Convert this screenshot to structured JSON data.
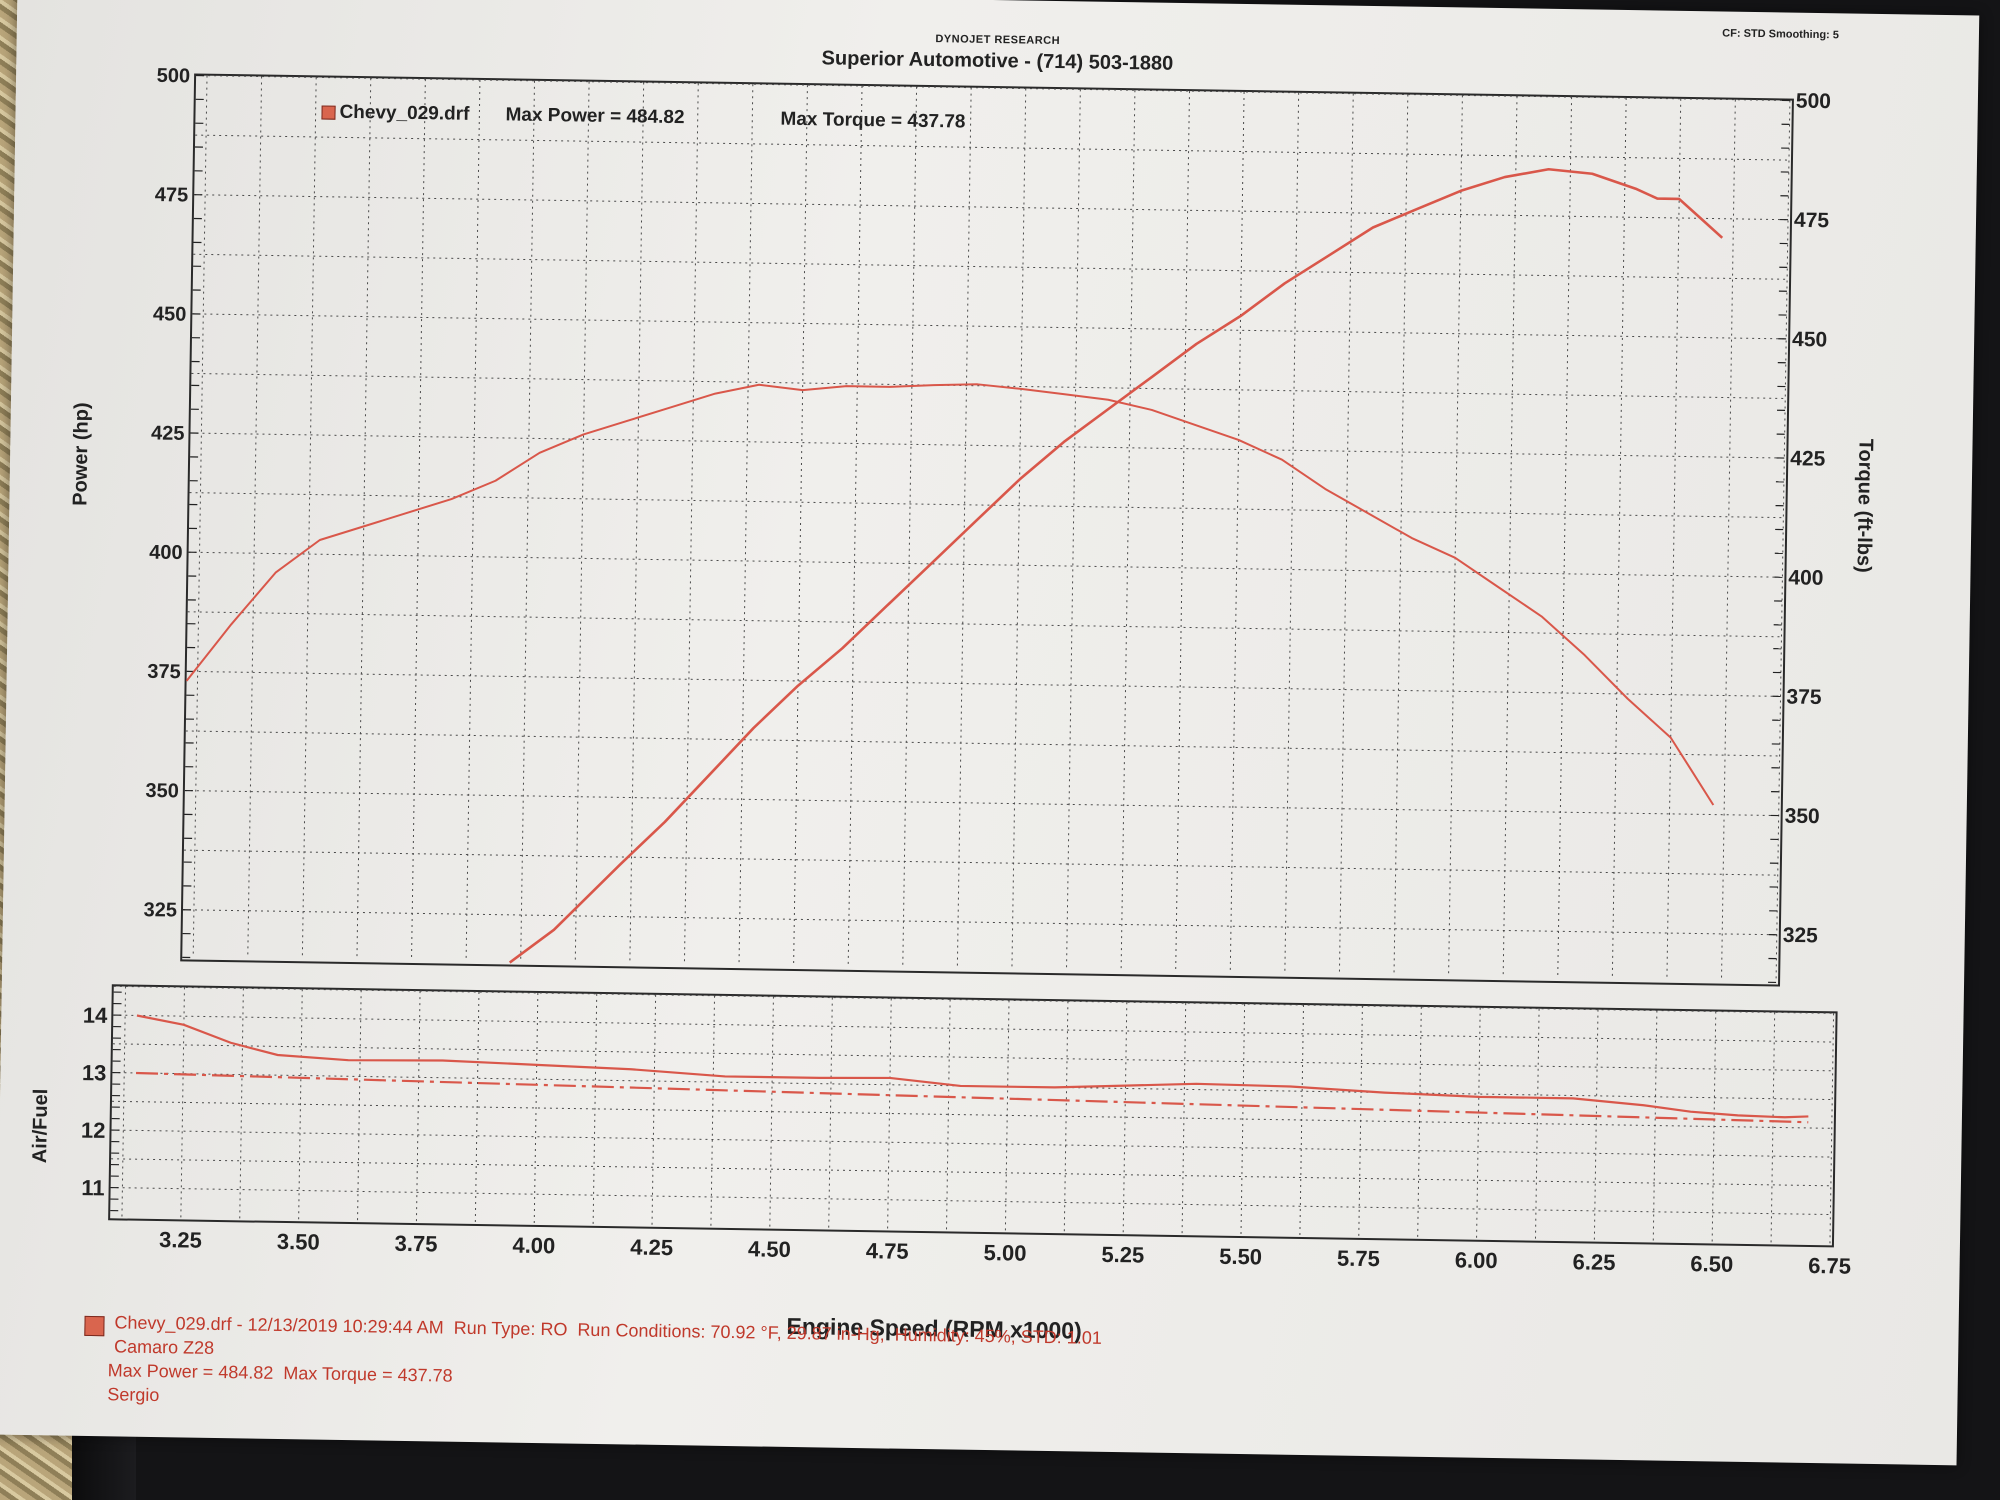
{
  "header": {
    "brand": "DYNOJET RESEARCH",
    "title": "Superior Automotive - (714) 503-1880",
    "settings": "CF: STD  Smoothing: 5"
  },
  "legend": {
    "file": "Chevy_029.drf",
    "max_power": "Max Power = 484.82",
    "max_torque": "Max Torque = 437.78"
  },
  "colors": {
    "curve": "#d9574a",
    "grid": "#4a4a4a",
    "paper": "#ecebe8"
  },
  "footer": {
    "line1": "Chevy_029.drf - 12/13/2019 10:29:44 AM  Run Type: RO  Run Conditions: 70.92 °F, 29.87 in-Hg,  Humidity: 45%, STD: 1.01",
    "line2": "Camaro Z28",
    "line3": "Max Power = 484.82  Max Torque = 437.78",
    "line4": "Sergio"
  },
  "chart_data": [
    {
      "type": "line",
      "xlabel": "Engine Speed (RPM x1000)",
      "ylabel": "Power (hp)",
      "y2label": "Torque (ft-lbs)",
      "xlim": [
        3.1,
        6.75
      ],
      "ylim": [
        315,
        500
      ],
      "y2lim": [
        315,
        500
      ],
      "x_ticks": [
        3.25,
        3.5,
        3.75,
        4.0,
        4.25,
        4.5,
        4.75,
        5.0,
        5.25,
        5.5,
        5.75,
        6.0,
        6.25,
        6.5,
        6.75
      ],
      "y_ticks": [
        325,
        350,
        375,
        400,
        425,
        450,
        475,
        500
      ],
      "y2_ticks": [
        325,
        350,
        375,
        400,
        425,
        450,
        475,
        500
      ],
      "grid": true,
      "series": [
        {
          "name": "Power (hp)",
          "points": [
            [
              3.85,
              315
            ],
            [
              3.95,
              322
            ],
            [
              4.1,
              336
            ],
            [
              4.2,
              345
            ],
            [
              4.3,
              355
            ],
            [
              4.4,
              365
            ],
            [
              4.5,
              374
            ],
            [
              4.6,
              382
            ],
            [
              4.7,
              391
            ],
            [
              4.8,
              400
            ],
            [
              4.9,
              409
            ],
            [
              5.0,
              418
            ],
            [
              5.1,
              426
            ],
            [
              5.2,
              433
            ],
            [
              5.3,
              440
            ],
            [
              5.4,
              447
            ],
            [
              5.5,
              453
            ],
            [
              5.6,
              460
            ],
            [
              5.7,
              466
            ],
            [
              5.8,
              472
            ],
            [
              5.9,
              476
            ],
            [
              6.0,
              480
            ],
            [
              6.1,
              483
            ],
            [
              6.2,
              484.8
            ],
            [
              6.3,
              484
            ],
            [
              6.4,
              481
            ],
            [
              6.45,
              479
            ],
            [
              6.5,
              479
            ],
            [
              6.55,
              475
            ],
            [
              6.6,
              471
            ]
          ]
        },
        {
          "name": "Torque (ft-lbs)",
          "points": [
            [
              3.1,
              373
            ],
            [
              3.2,
              385
            ],
            [
              3.3,
              396
            ],
            [
              3.4,
              403
            ],
            [
              3.5,
              406
            ],
            [
              3.6,
              409
            ],
            [
              3.7,
              412
            ],
            [
              3.8,
              416
            ],
            [
              3.9,
              422
            ],
            [
              4.0,
              426
            ],
            [
              4.1,
              429
            ],
            [
              4.2,
              432
            ],
            [
              4.3,
              435
            ],
            [
              4.4,
              437
            ],
            [
              4.5,
              436
            ],
            [
              4.6,
              437
            ],
            [
              4.7,
              437
            ],
            [
              4.8,
              437.5
            ],
            [
              4.9,
              437.8
            ],
            [
              5.0,
              437
            ],
            [
              5.1,
              436
            ],
            [
              5.2,
              435
            ],
            [
              5.3,
              433
            ],
            [
              5.4,
              430
            ],
            [
              5.5,
              427
            ],
            [
              5.6,
              423
            ],
            [
              5.7,
              417
            ],
            [
              5.8,
              412
            ],
            [
              5.9,
              407
            ],
            [
              6.0,
              403
            ],
            [
              6.1,
              397
            ],
            [
              6.2,
              391
            ],
            [
              6.3,
              383
            ],
            [
              6.4,
              374
            ],
            [
              6.5,
              366
            ],
            [
              6.55,
              359
            ],
            [
              6.6,
              352
            ]
          ]
        }
      ]
    },
    {
      "type": "line",
      "ylabel": "Air/Fuel",
      "xlim": [
        3.1,
        6.75
      ],
      "ylim": [
        10.5,
        14.5
      ],
      "y_ticks": [
        11,
        12,
        13,
        14
      ],
      "x_ticks": [
        3.25,
        3.5,
        3.75,
        4.0,
        4.25,
        4.5,
        4.75,
        5.0,
        5.25,
        5.5,
        5.75,
        6.0,
        6.25,
        6.5,
        6.75
      ],
      "grid": true,
      "series": [
        {
          "name": "Air/Fuel",
          "points": [
            [
              3.15,
              14.0
            ],
            [
              3.25,
              13.85
            ],
            [
              3.35,
              13.55
            ],
            [
              3.45,
              13.35
            ],
            [
              3.6,
              13.28
            ],
            [
              3.8,
              13.3
            ],
            [
              4.0,
              13.25
            ],
            [
              4.2,
              13.2
            ],
            [
              4.4,
              13.1
            ],
            [
              4.6,
              13.1
            ],
            [
              4.75,
              13.12
            ],
            [
              4.9,
              13.0
            ],
            [
              5.0,
              13.0
            ],
            [
              5.1,
              13.0
            ],
            [
              5.25,
              13.05
            ],
            [
              5.4,
              13.1
            ],
            [
              5.6,
              13.08
            ],
            [
              5.8,
              13.0
            ],
            [
              6.0,
              12.95
            ],
            [
              6.2,
              12.95
            ],
            [
              6.35,
              12.85
            ],
            [
              6.45,
              12.75
            ],
            [
              6.55,
              12.7
            ],
            [
              6.65,
              12.68
            ],
            [
              6.7,
              12.7
            ]
          ]
        },
        {
          "name": "Target",
          "dashed": true,
          "points": [
            [
              3.15,
              13.0
            ],
            [
              6.7,
              12.6
            ]
          ]
        }
      ]
    }
  ]
}
